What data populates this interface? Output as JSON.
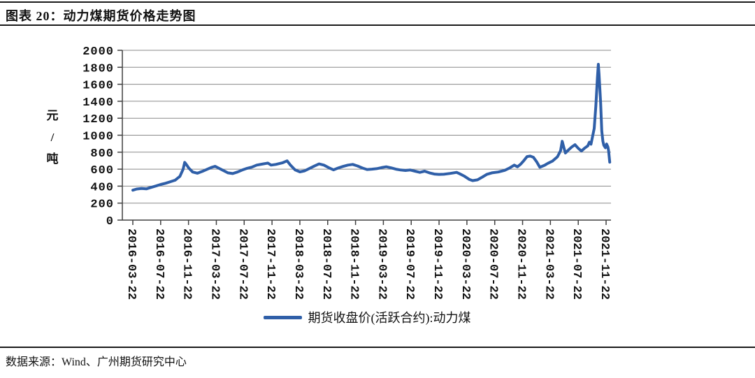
{
  "header": {
    "title": "图表 20：动力煤期货价格走势图"
  },
  "footer": {
    "source": "数据来源：Wind、广州期货研究中心"
  },
  "colors": {
    "line": "#2f5fa8",
    "gridline": "#8a8a8a",
    "axis": "#404040",
    "text": "#111111",
    "rule": "#1a1a1a"
  },
  "chart_data": {
    "type": "line",
    "title": "动力煤期货价格走势图",
    "ylabel": "元/吨",
    "ylim": [
      0,
      2000
    ],
    "ytick_step": 200,
    "y_tick_labels": [
      "0",
      "200",
      "400",
      "600",
      "800",
      "1000",
      "1200",
      "1400",
      "1600",
      "1800",
      "2000"
    ],
    "grid": "horizontal",
    "legend_position": "bottom",
    "x_tick_labels": [
      "2016-03-22",
      "2016-07-22",
      "2016-11-22",
      "2017-03-22",
      "2017-07-22",
      "2017-11-22",
      "2018-03-22",
      "2018-07-22",
      "2018-11-22",
      "2019-03-22",
      "2019-07-22",
      "2019-11-22",
      "2020-03-22",
      "2020-07-22",
      "2020-11-22",
      "2021-03-22",
      "2021-07-22",
      "2021-11-22"
    ],
    "series": [
      {
        "name": "期货收盘价(活跃合约):动力煤",
        "color": "#2f5fa8",
        "x": [
          "2016-03-22",
          "2016-04-08",
          "2016-04-29",
          "2016-05-20",
          "2016-06-10",
          "2016-07-01",
          "2016-07-22",
          "2016-08-12",
          "2016-09-02",
          "2016-09-23",
          "2016-10-14",
          "2016-10-28",
          "2016-11-04",
          "2016-11-11",
          "2016-11-22",
          "2016-12-09",
          "2016-12-30",
          "2017-01-20",
          "2017-02-10",
          "2017-03-03",
          "2017-03-17",
          "2017-03-31",
          "2017-04-21",
          "2017-05-12",
          "2017-06-02",
          "2017-06-23",
          "2017-07-14",
          "2017-08-04",
          "2017-08-25",
          "2017-09-15",
          "2017-10-13",
          "2017-11-03",
          "2017-11-17",
          "2017-12-08",
          "2018-01-05",
          "2018-01-26",
          "2018-02-09",
          "2018-03-02",
          "2018-03-23",
          "2018-04-13",
          "2018-05-04",
          "2018-05-25",
          "2018-06-15",
          "2018-07-06",
          "2018-07-27",
          "2018-08-17",
          "2018-09-07",
          "2018-09-28",
          "2018-10-19",
          "2018-11-09",
          "2018-11-30",
          "2018-12-21",
          "2019-01-11",
          "2019-02-01",
          "2019-02-22",
          "2019-03-15",
          "2019-04-05",
          "2019-04-26",
          "2019-05-17",
          "2019-06-07",
          "2019-06-28",
          "2019-07-19",
          "2019-08-09",
          "2019-08-30",
          "2019-09-20",
          "2019-10-11",
          "2019-11-01",
          "2019-11-22",
          "2019-12-13",
          "2020-01-10",
          "2020-02-07",
          "2020-02-21",
          "2020-03-13",
          "2020-04-03",
          "2020-04-17",
          "2020-05-08",
          "2020-05-29",
          "2020-06-19",
          "2020-07-10",
          "2020-08-07",
          "2020-09-04",
          "2020-09-25",
          "2020-10-16",
          "2020-10-30",
          "2020-11-13",
          "2020-11-27",
          "2020-12-11",
          "2020-12-25",
          "2021-01-08",
          "2021-01-22",
          "2021-02-05",
          "2021-02-26",
          "2021-03-12",
          "2021-04-02",
          "2021-04-23",
          "2021-05-07",
          "2021-05-14",
          "2021-05-21",
          "2021-05-28",
          "2021-06-11",
          "2021-06-25",
          "2021-07-09",
          "2021-07-23",
          "2021-08-06",
          "2021-08-20",
          "2021-09-03",
          "2021-09-10",
          "2021-09-17",
          "2021-10-01",
          "2021-10-08",
          "2021-10-15",
          "2021-10-19",
          "2021-10-22",
          "2021-10-29",
          "2021-11-03",
          "2021-11-08",
          "2021-11-12",
          "2021-11-19",
          "2021-11-24",
          "2021-11-30",
          "2021-12-03",
          "2021-12-08"
        ],
        "values": [
          352,
          366,
          372,
          368,
          385,
          402,
          420,
          434,
          452,
          470,
          515,
          598,
          680,
          655,
          612,
          566,
          552,
          574,
          598,
          622,
          634,
          614,
          586,
          556,
          548,
          566,
          590,
          610,
          624,
          648,
          662,
          672,
          648,
          656,
          674,
          698,
          650,
          592,
          568,
          580,
          608,
          636,
          662,
          648,
          618,
          592,
          614,
          632,
          648,
          656,
          638,
          614,
          596,
          600,
          606,
          618,
          628,
          616,
          600,
          590,
          584,
          590,
          576,
          562,
          576,
          556,
          542,
          538,
          540,
          550,
          562,
          545,
          515,
          478,
          465,
          474,
          506,
          540,
          556,
          566,
          586,
          612,
          648,
          628,
          658,
          700,
          748,
          754,
          740,
          688,
          622,
          646,
          668,
          696,
          746,
          818,
          928,
          858,
          790,
          828,
          862,
          888,
          846,
          814,
          848,
          874,
          918,
          894,
          1080,
          1340,
          1680,
          1835,
          1720,
          1380,
          1050,
          930,
          882,
          852,
          896,
          862,
          816,
          682
        ]
      }
    ]
  }
}
